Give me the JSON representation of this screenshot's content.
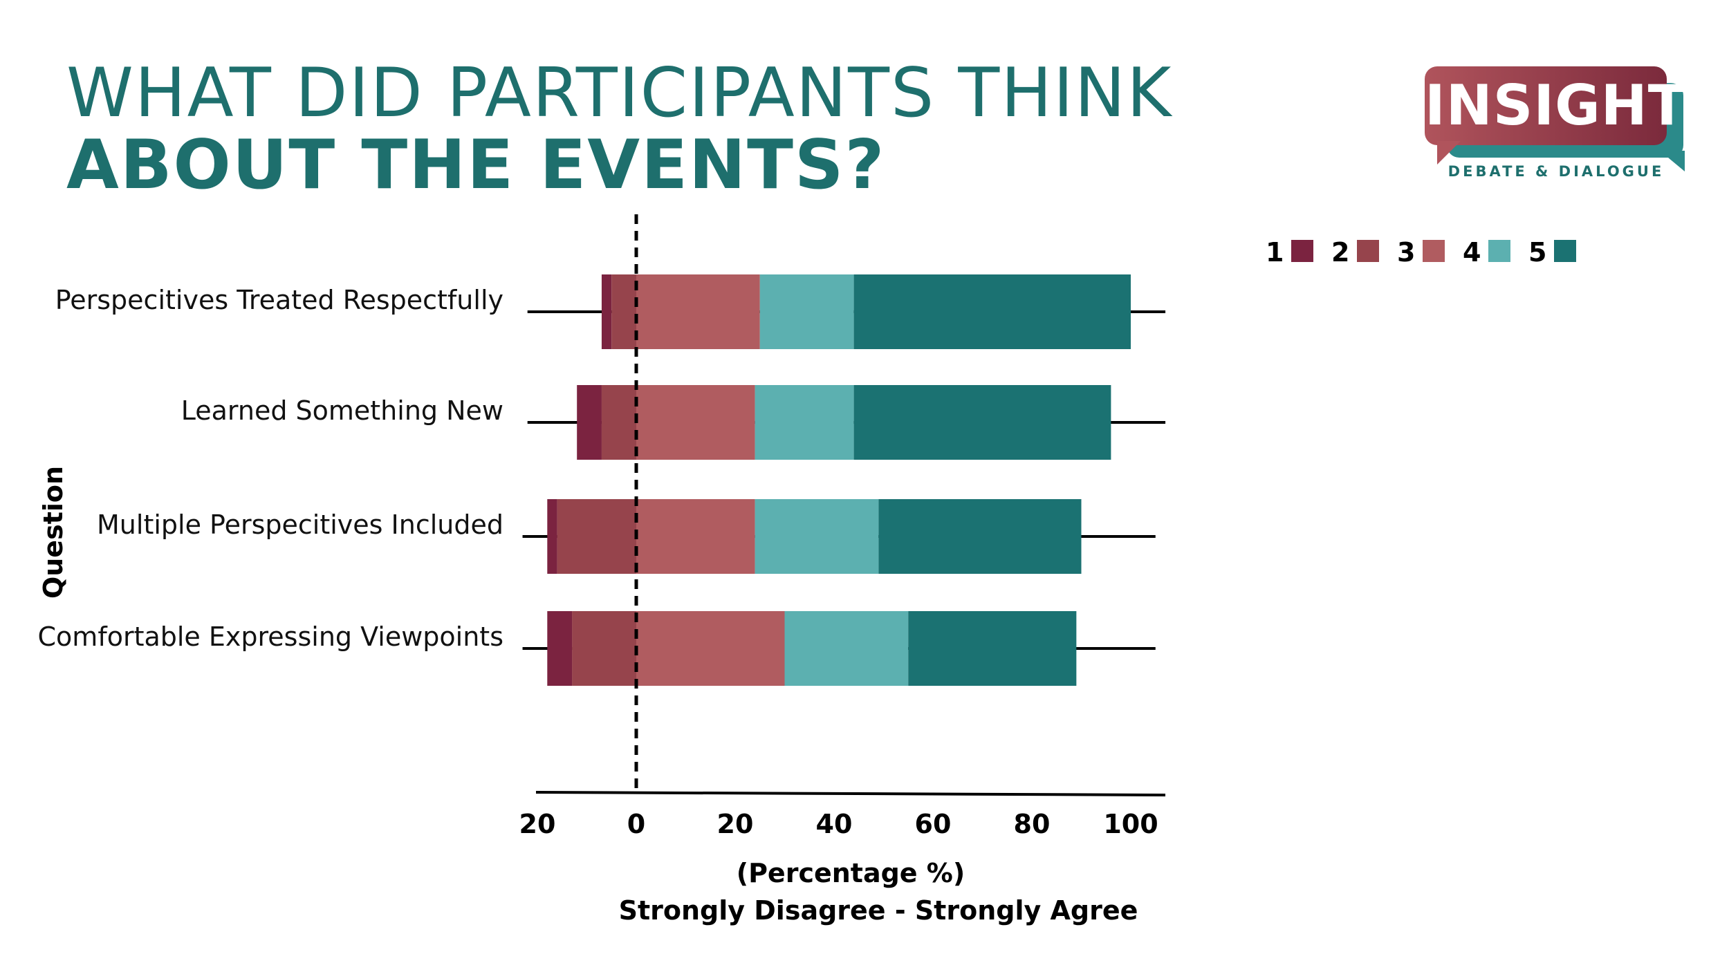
{
  "header": {
    "title_line1": "WHAT DID PARTICIPANTS THINK",
    "title_line2": "ABOUT THE EVENTS?"
  },
  "logo": {
    "name": "INSIGHT",
    "tagline": "DEBATE & DIALOGUE"
  },
  "chart_data": {
    "type": "bar",
    "orientation": "horizontal",
    "stacked": "diverging",
    "categories": [
      "Perspecitives Treated Respectfully",
      "Learned Something New",
      "Multiple Perspecitives Included",
      "Comfortable Expressing Viewpoints"
    ],
    "series": [
      {
        "name": "1",
        "color": "#7b2340"
      },
      {
        "name": "2",
        "color": "#96444c"
      },
      {
        "name": "3",
        "color": "#b05c60"
      },
      {
        "name": "4",
        "color": "#5cb0b0"
      },
      {
        "name": "5",
        "color": "#1b7272"
      }
    ],
    "bars": [
      [
        [
          -7,
          -5
        ],
        [
          -5,
          0
        ],
        [
          0,
          25
        ],
        [
          25,
          44
        ],
        [
          44,
          100
        ]
      ],
      [
        [
          -12,
          -7
        ],
        [
          -7,
          0
        ],
        [
          0,
          24
        ],
        [
          24,
          44
        ],
        [
          44,
          96
        ]
      ],
      [
        [
          -18,
          -16
        ],
        [
          -16,
          0
        ],
        [
          0,
          24
        ],
        [
          24,
          49
        ],
        [
          49,
          90
        ]
      ],
      [
        [
          -18,
          -13
        ],
        [
          -13,
          0
        ],
        [
          0,
          30
        ],
        [
          30,
          55
        ],
        [
          55,
          89
        ]
      ]
    ],
    "error_ranges": [
      [
        -22,
        107
      ],
      [
        -22,
        107
      ],
      [
        -23,
        105
      ],
      [
        -23,
        105
      ]
    ],
    "xlim": [
      -20,
      100
    ],
    "x_ticks": [
      -20,
      0,
      20,
      40,
      60,
      80,
      100
    ],
    "x_tick_labels": [
      "20",
      "0",
      "20",
      "40",
      "60",
      "80",
      "100"
    ],
    "xlabel_line1": "(Percentage %)",
    "xlabel_line2": "Strongly Disagree - Strongly Agree",
    "ylabel": "Question",
    "legend_position": "top-right",
    "zero_line": "dashed"
  }
}
